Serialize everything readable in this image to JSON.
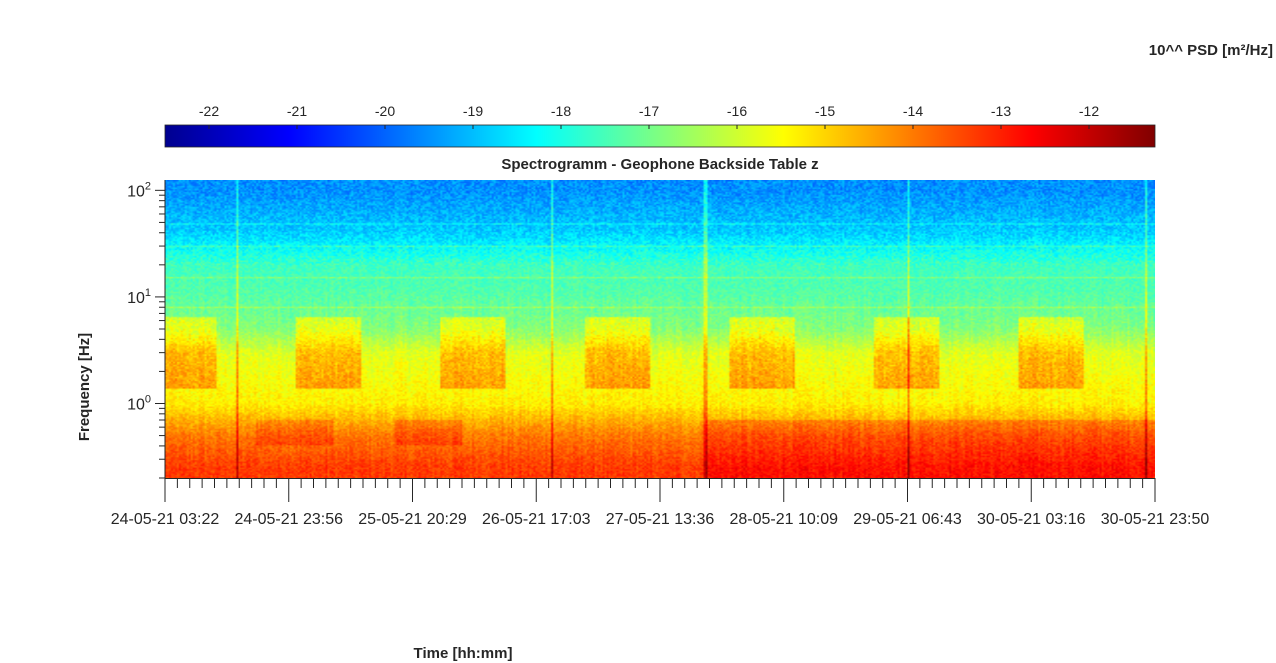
{
  "chart_data": {
    "type": "heatmap",
    "title": "Spectrogramm - Geophone Backside Table z",
    "xlabel": "Time [hh:mm]",
    "ylabel": "Frequency [Hz]",
    "colorbar_label": "10^^ PSD [m²/Hz]",
    "colormap": "jet",
    "clim": [
      -22.5,
      -11.25
    ],
    "colorbar_ticks": [
      -22,
      -21,
      -20,
      -19,
      -18,
      -17,
      -16,
      -15,
      -14,
      -13,
      -12
    ],
    "y_scale": "log",
    "ylim": [
      0.2,
      125
    ],
    "y_ticks": [
      {
        "base": "10",
        "exp": "0",
        "value": 1
      },
      {
        "base": "10",
        "exp": "1",
        "value": 10
      },
      {
        "base": "10",
        "exp": "2",
        "value": 100
      }
    ],
    "x_tick_labels": [
      {
        "date": "24-05-21",
        "time": "03:22"
      },
      {
        "date": "24-05-21",
        "time": "23:56"
      },
      {
        "date": "25-05-21",
        "time": "20:29"
      },
      {
        "date": "26-05-21",
        "time": "17:03"
      },
      {
        "date": "27-05-21",
        "time": "13:36"
      },
      {
        "date": "28-05-21",
        "time": "10:09"
      },
      {
        "date": "29-05-21",
        "time": "06:43"
      },
      {
        "date": "30-05-21",
        "time": "03:16"
      },
      {
        "date": "30-05-21",
        "time": "23:50"
      }
    ],
    "approx_psd_log10_by_frequency": [
      {
        "frequency_hz": 100,
        "psd": -19.5
      },
      {
        "frequency_hz": 40,
        "psd": -18.8
      },
      {
        "frequency_hz": 20,
        "psd": -17.6
      },
      {
        "frequency_hz": 10,
        "psd": -17.3
      },
      {
        "frequency_hz": 5,
        "psd": -16.8
      },
      {
        "frequency_hz": 3,
        "psd": -15.8
      },
      {
        "frequency_hz": 1,
        "psd": -15.3
      },
      {
        "frequency_hz": 0.5,
        "psd": -14.0
      },
      {
        "frequency_hz": 0.25,
        "psd": -13.3
      }
    ],
    "grid": false,
    "colorbar_position": "top"
  }
}
